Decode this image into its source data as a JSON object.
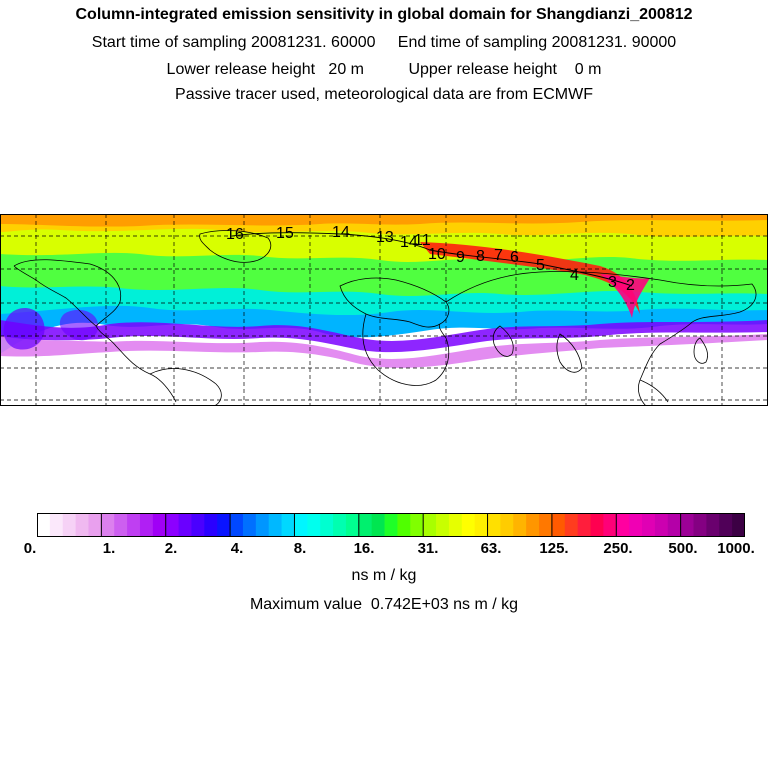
{
  "header": {
    "title": "Column-integrated emission sensitivity in global domain for Shangdianzi_200812",
    "sampling_line": "Start time of sampling 20081231. 60000     End time of sampling 20081231. 90000",
    "release_line": "Lower release height   20 m          Upper release height    0 m",
    "tracer_line": "Passive tracer used, meteorological data are from ECMWF"
  },
  "map": {
    "trajectory_labels": [
      "16",
      "15",
      "14",
      "13",
      "14",
      "11",
      "10",
      "9",
      "8",
      "7",
      "6",
      "5",
      "4",
      "3",
      "2"
    ],
    "colors": {
      "land_outline": "#000000",
      "grid": "#000000",
      "high": "#ff0000",
      "mid_high": "#ffd700",
      "mid": "#7fff00",
      "mid_low": "#00ffc8",
      "low": "#1e90ff",
      "lowest": "#b000ff"
    }
  },
  "colorbar": {
    "tick_labels": [
      "0.",
      "1.",
      "2.",
      "4.",
      "8.",
      "16.",
      "31.",
      "63.",
      "125.",
      "250.",
      "500.",
      "1000."
    ],
    "colors": [
      "#ffffff",
      "#fbe8fb",
      "#f6d2f6",
      "#f0b9f0",
      "#e9a0ee",
      "#dc80ee",
      "#cd5ff0",
      "#bf3ff2",
      "#b01ff4",
      "#a000f6",
      "#8c00ff",
      "#6a00ff",
      "#4a00ff",
      "#2a00ff",
      "#0a14ff",
      "#0048ff",
      "#0070ff",
      "#0096ff",
      "#00b8ff",
      "#00d8ff",
      "#00f6ff",
      "#00ffee",
      "#00ffd0",
      "#00ffb0",
      "#00ff90",
      "#00f06e",
      "#00e650",
      "#1eff28",
      "#50ff00",
      "#80ff00",
      "#a8ff00",
      "#c8ff00",
      "#e6ff00",
      "#ffff00",
      "#fff000",
      "#ffe000",
      "#ffcc00",
      "#ffb400",
      "#ff9600",
      "#ff7800",
      "#ff5a00",
      "#ff3c1e",
      "#ff1e3c",
      "#ff0050",
      "#ff0078",
      "#ff00a0",
      "#f000b4",
      "#e000b4",
      "#cc00b0",
      "#b400a8",
      "#9c0096",
      "#840082",
      "#6a006e",
      "#500058",
      "#3c0044"
    ],
    "unit": "ns m / kg",
    "maximum": "Maximum value  0.742E+03 ns m / kg"
  }
}
